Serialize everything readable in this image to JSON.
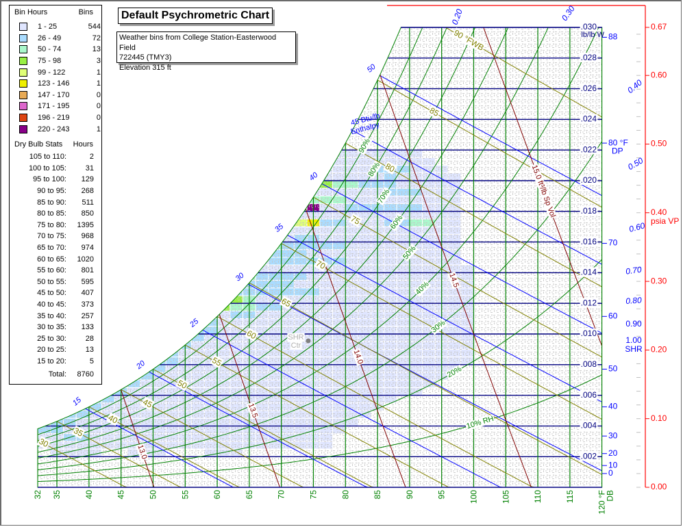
{
  "title": "Default Psychrometric Chart",
  "info": {
    "line1": "Weather bins from College Station-Easterwood Field",
    "line2": "722445 (TMY3)",
    "line3": "Elevation 315 ft"
  },
  "legend": {
    "bin_header": "Bin Hours",
    "bins_header": "Bins",
    "bins": [
      {
        "range": "1 - 25",
        "count": "544",
        "color": "#e0e6ff"
      },
      {
        "range": "26 - 49",
        "count": "72",
        "color": "#aadcff"
      },
      {
        "range": "50 - 74",
        "count": "13",
        "color": "#aaf8cc"
      },
      {
        "range": "75 - 98",
        "count": "3",
        "color": "#99f044"
      },
      {
        "range": "99 - 122",
        "count": "1",
        "color": "#e0ff77"
      },
      {
        "range": "123 - 146",
        "count": "1",
        "color": "#f0f000"
      },
      {
        "range": "147 - 170",
        "count": "0",
        "color": "#e8aa55"
      },
      {
        "range": "171 - 195",
        "count": "0",
        "color": "#dd66cc"
      },
      {
        "range": "196 - 219",
        "count": "0",
        "color": "#dd4411"
      },
      {
        "range": "220 - 243",
        "count": "1",
        "color": "#880088"
      }
    ],
    "db_header": "Dry Bulb Stats",
    "hours_header": "Hours",
    "db_stats": [
      {
        "range": "105 to 110:",
        "hours": "2"
      },
      {
        "range": "100 to 105:",
        "hours": "31"
      },
      {
        "range": "95 to 100:",
        "hours": "129"
      },
      {
        "range": "90 to 95:",
        "hours": "268"
      },
      {
        "range": "85 to 90:",
        "hours": "511"
      },
      {
        "range": "80 to 85:",
        "hours": "850"
      },
      {
        "range": "75 to 80:",
        "hours": "1395"
      },
      {
        "range": "70 to 75:",
        "hours": "968"
      },
      {
        "range": "65 to 70:",
        "hours": "974"
      },
      {
        "range": "60 to 65:",
        "hours": "1020"
      },
      {
        "range": "55 to 60:",
        "hours": "801"
      },
      {
        "range": "50 to 55:",
        "hours": "595"
      },
      {
        "range": "45 to 50:",
        "hours": "407"
      },
      {
        "range": "40 to 45:",
        "hours": "373"
      },
      {
        "range": "35 to 40:",
        "hours": "257"
      },
      {
        "range": "30 to 35:",
        "hours": "133"
      },
      {
        "range": "25 to 30:",
        "hours": "28"
      },
      {
        "range": "20 to 25:",
        "hours": "13"
      },
      {
        "range": "15 to 20:",
        "hours": "5"
      },
      {
        "range": "Total:",
        "hours": "8760"
      }
    ]
  },
  "chart_data": {
    "type": "heatmap",
    "subtype": "psychrometric",
    "title": "Default Psychrometric Chart",
    "elevation_ft": 315,
    "x_axis": {
      "label": "°F DB",
      "range": [
        32,
        120
      ],
      "ticks": [
        32,
        35,
        40,
        45,
        50,
        55,
        60,
        65,
        70,
        75,
        80,
        85,
        90,
        95,
        100,
        105,
        110,
        115,
        120
      ],
      "last_tick_label": "120 °F",
      "last_tick_label2": "DB"
    },
    "y_axis": {
      "label": "lb/lb W",
      "range": [
        0,
        0.03
      ],
      "ticks": [
        ".002",
        ".004",
        ".006",
        ".008",
        ".010",
        ".012",
        ".014",
        ".016",
        ".018",
        ".020",
        ".022",
        ".024",
        ".026",
        ".028",
        ".030"
      ],
      "tick_values": [
        0.002,
        0.004,
        0.006,
        0.008,
        0.01,
        0.012,
        0.014,
        0.016,
        0.018,
        0.02,
        0.022,
        0.024,
        0.026,
        0.028,
        0.03
      ]
    },
    "dew_point_axis": {
      "ticks": [
        0,
        10,
        20,
        30,
        40,
        50,
        60,
        70,
        80,
        88
      ],
      "label_80": "80 °F",
      "label_unit": "DP"
    },
    "vapor_pressure_axis": {
      "label": "psia VP",
      "ticks": [
        "0.00",
        "0.10",
        "0.20",
        "0.30",
        "0.40",
        "0.50",
        "0.60",
        "0.67"
      ],
      "tick_values": [
        0,
        0.1,
        0.2,
        0.3,
        0.4,
        0.5,
        0.6,
        0.67
      ]
    },
    "shr_scale": {
      "label": "SHR",
      "ticks": [
        "0.20",
        "0.30",
        "0.40",
        "0.50",
        "0.60",
        "0.70",
        "0.80",
        "0.90",
        "1.00"
      ]
    },
    "shr_center_label": [
      "SHR",
      "Ctr"
    ],
    "rh_curves": {
      "values": [
        10,
        20,
        30,
        40,
        50,
        60,
        70,
        80,
        90
      ],
      "labels": [
        "10% RH",
        "20%",
        "30%",
        "40%",
        "50%",
        "60%",
        "70%",
        "80%",
        "90%"
      ]
    },
    "wet_bulb_lines": {
      "values": [
        30,
        35,
        40,
        45,
        50,
        55,
        60,
        65,
        70,
        75,
        80,
        85,
        90
      ],
      "labels": [
        "30",
        "35",
        "40",
        "45",
        "50",
        "55",
        "60",
        "65",
        "70",
        "75",
        "80",
        "85",
        "90 °FWB"
      ]
    },
    "enthalpy_lines": {
      "values": [
        15,
        20,
        25,
        30,
        35,
        40,
        45,
        50
      ],
      "labels": [
        "15",
        "20",
        "25",
        "30",
        "35",
        "40",
        "45 Btu/lb",
        "50"
      ],
      "label_extra": "Enthalpy"
    },
    "specific_volume_lines": {
      "values": [
        13.0,
        13.5,
        14.0,
        14.5,
        15.0
      ],
      "labels": [
        "13.0",
        "13.5",
        "14.0",
        "14.5",
        "15.0 ft³/lb Sp Vol"
      ]
    },
    "bin_size": {
      "dry_bulb_F": 2,
      "humidity_ratio": 0.0005
    },
    "bin_rows": [
      {
        "w": 0.0215,
        "spans": [
          [
            78,
            92,
            0
          ]
        ]
      },
      {
        "w": 0.021,
        "spans": [
          [
            76,
            94,
            0
          ]
        ]
      },
      {
        "w": 0.0205,
        "spans": [
          [
            76,
            84,
            0
          ],
          [
            84,
            90,
            1
          ],
          [
            90,
            96,
            0
          ]
        ]
      },
      {
        "w": 0.02,
        "spans": [
          [
            76,
            86,
            0
          ],
          [
            86,
            88,
            1
          ],
          [
            88,
            98,
            0
          ]
        ]
      },
      {
        "w": 0.0195,
        "spans": [
          [
            74,
            78,
            3
          ],
          [
            78,
            82,
            2
          ],
          [
            82,
            88,
            1
          ],
          [
            88,
            98,
            0
          ]
        ]
      },
      {
        "w": 0.019,
        "spans": [
          [
            74,
            86,
            0
          ],
          [
            86,
            92,
            1
          ],
          [
            92,
            98,
            0
          ]
        ]
      },
      {
        "w": 0.0185,
        "spans": [
          [
            74,
            80,
            2
          ],
          [
            80,
            98,
            0
          ]
        ]
      },
      {
        "w": 0.018,
        "spans": [
          [
            72,
            74,
            2
          ],
          [
            74,
            76,
            9
          ],
          [
            76,
            80,
            0
          ],
          [
            80,
            92,
            1
          ],
          [
            92,
            98,
            0
          ]
        ]
      },
      {
        "w": 0.0175,
        "spans": [
          [
            72,
            98,
            0
          ]
        ]
      },
      {
        "w": 0.017,
        "spans": [
          [
            72,
            74,
            4
          ],
          [
            74,
            76,
            5
          ],
          [
            76,
            80,
            1
          ],
          [
            80,
            86,
            0
          ],
          [
            86,
            90,
            1
          ],
          [
            90,
            94,
            2
          ],
          [
            94,
            98,
            0
          ]
        ]
      },
      {
        "w": 0.0165,
        "spans": [
          [
            70,
            98,
            0
          ]
        ]
      },
      {
        "w": 0.016,
        "spans": [
          [
            70,
            72,
            0
          ],
          [
            72,
            76,
            1
          ],
          [
            76,
            98,
            0
          ]
        ]
      },
      {
        "w": 0.0155,
        "spans": [
          [
            68,
            70,
            2
          ],
          [
            70,
            80,
            1
          ],
          [
            80,
            98,
            0
          ]
        ]
      },
      {
        "w": 0.015,
        "spans": [
          [
            68,
            74,
            1
          ],
          [
            74,
            98,
            0
          ]
        ]
      },
      {
        "w": 0.0145,
        "spans": [
          [
            66,
            68,
            0
          ],
          [
            68,
            80,
            1
          ],
          [
            80,
            98,
            0
          ]
        ]
      },
      {
        "w": 0.014,
        "spans": [
          [
            66,
            100,
            0
          ]
        ]
      },
      {
        "w": 0.0135,
        "spans": [
          [
            64,
            66,
            2
          ],
          [
            66,
            74,
            1
          ],
          [
            74,
            100,
            0
          ]
        ]
      },
      {
        "w": 0.013,
        "spans": [
          [
            64,
            72,
            1
          ],
          [
            72,
            100,
            0
          ]
        ]
      },
      {
        "w": 0.0125,
        "spans": [
          [
            62,
            76,
            1
          ],
          [
            76,
            100,
            0
          ]
        ]
      },
      {
        "w": 0.012,
        "spans": [
          [
            60,
            62,
            2
          ],
          [
            62,
            64,
            3
          ],
          [
            64,
            66,
            2
          ],
          [
            66,
            100,
            0
          ]
        ]
      },
      {
        "w": 0.0115,
        "spans": [
          [
            60,
            62,
            3
          ],
          [
            62,
            66,
            2
          ],
          [
            66,
            70,
            1
          ],
          [
            70,
            100,
            0
          ]
        ]
      },
      {
        "w": 0.011,
        "spans": [
          [
            58,
            62,
            0
          ],
          [
            62,
            66,
            1
          ],
          [
            66,
            100,
            0
          ]
        ]
      },
      {
        "w": 0.0105,
        "spans": [
          [
            56,
            58,
            2
          ],
          [
            58,
            60,
            1
          ],
          [
            60,
            100,
            0
          ]
        ]
      },
      {
        "w": 0.01,
        "spans": [
          [
            56,
            60,
            1
          ],
          [
            60,
            100,
            0
          ]
        ]
      },
      {
        "w": 0.0095,
        "spans": [
          [
            54,
            58,
            1
          ],
          [
            58,
            100,
            0
          ]
        ]
      },
      {
        "w": 0.009,
        "spans": [
          [
            52,
            56,
            1
          ],
          [
            56,
            100,
            0
          ]
        ]
      },
      {
        "w": 0.0085,
        "spans": [
          [
            52,
            54,
            1
          ],
          [
            54,
            100,
            0
          ]
        ]
      },
      {
        "w": 0.008,
        "spans": [
          [
            50,
            54,
            1
          ],
          [
            54,
            100,
            0
          ]
        ]
      },
      {
        "w": 0.0075,
        "spans": [
          [
            48,
            52,
            1
          ],
          [
            52,
            98,
            0
          ]
        ]
      },
      {
        "w": 0.007,
        "spans": [
          [
            46,
            50,
            1
          ],
          [
            50,
            96,
            0
          ]
        ]
      },
      {
        "w": 0.0065,
        "spans": [
          [
            44,
            48,
            1
          ],
          [
            48,
            94,
            0
          ]
        ]
      },
      {
        "w": 0.006,
        "spans": [
          [
            42,
            46,
            1
          ],
          [
            46,
            92,
            0
          ]
        ]
      },
      {
        "w": 0.0055,
        "spans": [
          [
            40,
            44,
            1
          ],
          [
            44,
            88,
            0
          ]
        ]
      },
      {
        "w": 0.005,
        "spans": [
          [
            38,
            42,
            1
          ],
          [
            42,
            86,
            0
          ]
        ]
      },
      {
        "w": 0.0045,
        "spans": [
          [
            36,
            40,
            1
          ],
          [
            40,
            84,
            0
          ]
        ]
      },
      {
        "w": 0.004,
        "spans": [
          [
            34,
            38,
            1
          ],
          [
            38,
            82,
            0
          ]
        ]
      },
      {
        "w": 0.0035,
        "spans": [
          [
            32,
            36,
            1
          ],
          [
            36,
            80,
            0
          ]
        ]
      },
      {
        "w": 0.003,
        "spans": [
          [
            32,
            36,
            0
          ],
          [
            36,
            40,
            1
          ],
          [
            40,
            78,
            0
          ]
        ]
      },
      {
        "w": 0.0025,
        "spans": [
          [
            32,
            78,
            0
          ]
        ]
      },
      {
        "w": 0.002,
        "spans": [
          [
            34,
            42,
            0
          ],
          [
            46,
            52,
            0
          ],
          [
            58,
            64,
            0
          ]
        ]
      }
    ],
    "colors": {
      "dry_bulb": "#008000",
      "rh": "#008000",
      "humidity_ratio": "#000080",
      "enthalpy": "#0000ff",
      "wet_bulb": "#808000",
      "specific_volume": "#800000",
      "vapor_pressure": "#ff0000",
      "shr": "#0000ff"
    }
  }
}
